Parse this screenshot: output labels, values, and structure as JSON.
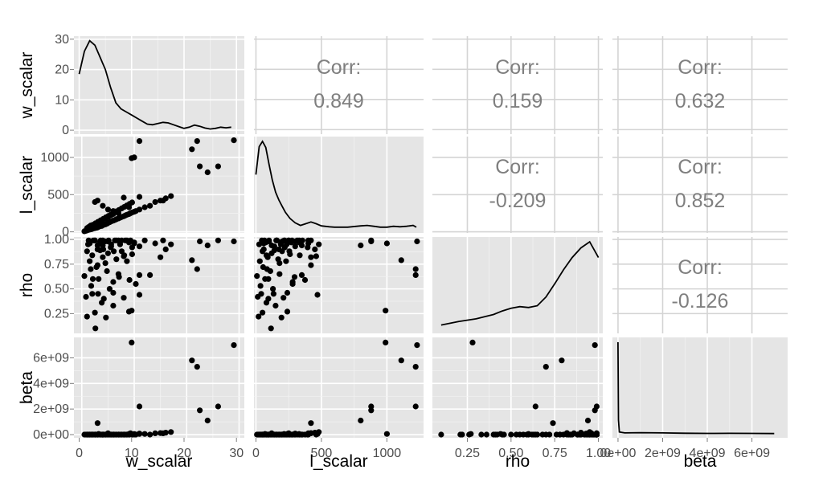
{
  "chart_data": {
    "type": "scatter",
    "title": "",
    "variables": [
      "w_scalar",
      "l_scalar",
      "rho",
      "beta"
    ],
    "panel_background": "#e5e5e5",
    "grid": true,
    "axes": {
      "w_scalar": {
        "range": [
          -1.5,
          31
        ],
        "ticks": [
          0,
          10,
          20,
          30
        ],
        "tick_labels": [
          "0",
          "10",
          "20",
          "30"
        ]
      },
      "l_scalar": {
        "range": [
          -15,
          1280
        ],
        "ticks": [
          0,
          500,
          1000
        ],
        "tick_labels": [
          "0",
          "500",
          "1000"
        ]
      },
      "rho": {
        "range": [
          0.05,
          1.025
        ],
        "ticks": [
          0.25,
          0.5,
          0.75,
          1.0
        ],
        "tick_labels": [
          "0.25",
          "0.50",
          "0.75",
          "1.00"
        ]
      },
      "beta": {
        "range": [
          -250000000.0,
          7600000000.0
        ],
        "ticks": [
          0,
          2000000000.0,
          4000000000.0,
          6000000000.0
        ],
        "tick_labels": [
          "0e+00",
          "2e+09",
          "4e+09",
          "6e+09"
        ]
      }
    },
    "density_axes": {
      "w_scalar": {
        "range": [
          -1,
          31.5
        ],
        "ticks": [
          0,
          10,
          20,
          30
        ],
        "tick_labels": [
          "0",
          "10",
          "20",
          "30"
        ]
      }
    },
    "correlations": [
      {
        "row": "w_scalar",
        "col": "l_scalar",
        "label": "Corr:",
        "value": "0.849"
      },
      {
        "row": "w_scalar",
        "col": "rho",
        "label": "Corr:",
        "value": "0.159"
      },
      {
        "row": "w_scalar",
        "col": "beta",
        "label": "Corr:",
        "value": "0.632"
      },
      {
        "row": "l_scalar",
        "col": "rho",
        "label": "Corr:",
        "value": "-0.209"
      },
      {
        "row": "l_scalar",
        "col": "beta",
        "label": "Corr:",
        "value": "0.852"
      },
      {
        "row": "rho",
        "col": "beta",
        "label": "Corr:",
        "value": "-0.126"
      }
    ],
    "density": {
      "w_scalar": [
        [
          0,
          18.5
        ],
        [
          1,
          26
        ],
        [
          2,
          29.5
        ],
        [
          3,
          28
        ],
        [
          4,
          24
        ],
        [
          5,
          20
        ],
        [
          6,
          14
        ],
        [
          7,
          9
        ],
        [
          8,
          7
        ],
        [
          9,
          6
        ],
        [
          10,
          5
        ],
        [
          11,
          4
        ],
        [
          12,
          3
        ],
        [
          13,
          2
        ],
        [
          14,
          1.8
        ],
        [
          15,
          2.2
        ],
        [
          16,
          2.6
        ],
        [
          17,
          2.4
        ],
        [
          18,
          1.8
        ],
        [
          19,
          1.2
        ],
        [
          20,
          0.6
        ],
        [
          21,
          1
        ],
        [
          22,
          1.7
        ],
        [
          23,
          1.3
        ],
        [
          24,
          0.7
        ],
        [
          25,
          0.4
        ],
        [
          26,
          0.6
        ],
        [
          27,
          1
        ],
        [
          28,
          0.8
        ],
        [
          29,
          1
        ]
      ],
      "l_scalar": [
        [
          0,
          0.62
        ],
        [
          25,
          0.94
        ],
        [
          50,
          1.0
        ],
        [
          75,
          0.93
        ],
        [
          100,
          0.74
        ],
        [
          125,
          0.56
        ],
        [
          150,
          0.42
        ],
        [
          175,
          0.33
        ],
        [
          200,
          0.26
        ],
        [
          225,
          0.19
        ],
        [
          260,
          0.12
        ],
        [
          300,
          0.07
        ],
        [
          340,
          0.04
        ],
        [
          380,
          0.06
        ],
        [
          420,
          0.08
        ],
        [
          460,
          0.06
        ],
        [
          500,
          0.035
        ],
        [
          560,
          0.025
        ],
        [
          600,
          0.02
        ],
        [
          700,
          0.02
        ],
        [
          800,
          0.035
        ],
        [
          850,
          0.04
        ],
        [
          900,
          0.03
        ],
        [
          950,
          0.02
        ],
        [
          1000,
          0.02
        ],
        [
          1050,
          0.03
        ],
        [
          1100,
          0.025
        ],
        [
          1150,
          0.03
        ],
        [
          1200,
          0.04
        ],
        [
          1225,
          0.02
        ]
      ],
      "rho": [
        [
          0.1,
          0.05
        ],
        [
          0.2,
          0.09
        ],
        [
          0.3,
          0.12
        ],
        [
          0.4,
          0.17
        ],
        [
          0.45,
          0.21
        ],
        [
          0.5,
          0.24
        ],
        [
          0.55,
          0.26
        ],
        [
          0.6,
          0.25
        ],
        [
          0.65,
          0.27
        ],
        [
          0.7,
          0.37
        ],
        [
          0.75,
          0.52
        ],
        [
          0.8,
          0.68
        ],
        [
          0.85,
          0.82
        ],
        [
          0.9,
          0.93
        ],
        [
          0.95,
          1.0
        ],
        [
          1.0,
          0.82
        ]
      ],
      "beta": [
        [
          0,
          1.0
        ],
        [
          20000000.0,
          0.15
        ],
        [
          60000000.0,
          0.02
        ],
        [
          300000000.0,
          0.01
        ],
        [
          1000000000.0,
          0.012
        ],
        [
          2000000000.0,
          0.01
        ],
        [
          3000000000.0,
          0.006
        ],
        [
          4000000000.0,
          0.004
        ],
        [
          5000000000.0,
          0.005
        ],
        [
          6000000000.0,
          0.004
        ],
        [
          7000000000.0,
          0.003
        ]
      ]
    },
    "points": [
      [
        0.5,
        8,
        0.63,
        0
      ],
      [
        0.8,
        14,
        0.42,
        0
      ],
      [
        1,
        20,
        0.22,
        0
      ],
      [
        1.2,
        25,
        0.95,
        0
      ],
      [
        1.5,
        30,
        0.78,
        0
      ],
      [
        1.8,
        35,
        0.53,
        0
      ],
      [
        2,
        40,
        0.45,
        0
      ],
      [
        2.2,
        45,
        0.99,
        0
      ],
      [
        2.5,
        50,
        0.26,
        0
      ],
      [
        2.8,
        55,
        0.72,
        0
      ],
      [
        3,
        60,
        0.9,
        0
      ],
      [
        3.2,
        70,
        0.6,
        50000000.0
      ],
      [
        3.5,
        75,
        0.97,
        0
      ],
      [
        3.8,
        80,
        0.36,
        0
      ],
      [
        4,
        90,
        0.82,
        0
      ],
      [
        4.2,
        95,
        0.4,
        0
      ],
      [
        4.5,
        100,
        0.98,
        0
      ],
      [
        4.8,
        110,
        0.68,
        0
      ],
      [
        5,
        120,
        0.86,
        100000000.0
      ],
      [
        5.3,
        130,
        0.5,
        0
      ],
      [
        5.6,
        140,
        0.93,
        0
      ],
      [
        6,
        150,
        0.33,
        0
      ],
      [
        6.3,
        160,
        0.99,
        0
      ],
      [
        6.6,
        170,
        0.8,
        0
      ],
      [
        7,
        180,
        0.65,
        0
      ],
      [
        7.3,
        190,
        0.95,
        0
      ],
      [
        7.6,
        200,
        0.88,
        0
      ],
      [
        8,
        210,
        0.41,
        0
      ],
      [
        8.3,
        220,
        0.99,
        0
      ],
      [
        8.6,
        230,
        0.78,
        0
      ],
      [
        9,
        240,
        0.27,
        50000000.0
      ],
      [
        9.3,
        250,
        0.99,
        100000000.0
      ],
      [
        9.6,
        260,
        0.85,
        0
      ],
      [
        10,
        270,
        0.97,
        0
      ],
      [
        10.3,
        280,
        0.55,
        0
      ],
      [
        11,
        300,
        0.93,
        80000000.0
      ],
      [
        12,
        330,
        0.99,
        50000000.0
      ],
      [
        13,
        350,
        0.64,
        0
      ],
      [
        14,
        400,
        0.96,
        100000000.0
      ],
      [
        15,
        420,
        0.82,
        120000000.0
      ],
      [
        16,
        450,
        0.9,
        150000000.0
      ],
      [
        17,
        480,
        0.95,
        200000000.0
      ],
      [
        1.5,
        60,
        0.96,
        0
      ],
      [
        2,
        80,
        0.84,
        0
      ],
      [
        2.5,
        100,
        0.99,
        0
      ],
      [
        3,
        120,
        0.94,
        0
      ],
      [
        3.5,
        140,
        0.89,
        0
      ],
      [
        4,
        160,
        0.99,
        0
      ],
      [
        4.5,
        180,
        0.76,
        0
      ],
      [
        5,
        200,
        0.98,
        0
      ],
      [
        5.5,
        220,
        0.92,
        0
      ],
      [
        6,
        240,
        0.46,
        0
      ],
      [
        2.5,
        400,
        0.99,
        0
      ],
      [
        3,
        420,
        0.74,
        900000000.0
      ],
      [
        4,
        350,
        0.94,
        0
      ],
      [
        5,
        300,
        0.98,
        0
      ],
      [
        6,
        280,
        0.57,
        0
      ],
      [
        7,
        250,
        0.99,
        0
      ],
      [
        8,
        460,
        0.83,
        0
      ],
      [
        9,
        330,
        0.97,
        0
      ],
      [
        10,
        1000,
        0.96,
        50000000.0
      ],
      [
        11,
        1220,
        0.64,
        2200000000.0
      ],
      [
        9.5,
        990,
        0.28,
        7200000000.0
      ],
      [
        21,
        1110,
        0.79,
        5800000000.0
      ],
      [
        22,
        1220,
        0.7,
        5300000000.0
      ],
      [
        22.5,
        880,
        0.98,
        1900000000.0
      ],
      [
        24,
        800,
        0.94,
        1100000000.0
      ],
      [
        26,
        880,
        0.99,
        2200000000.0
      ],
      [
        29,
        1230,
        0.98,
        7000000000.0
      ],
      [
        1,
        50,
        0.88,
        0
      ],
      [
        1.3,
        65,
        0.99,
        0
      ],
      [
        1.7,
        85,
        0.7,
        0
      ],
      [
        2.1,
        95,
        0.6,
        0
      ],
      [
        2.6,
        115,
        0.1,
        0
      ],
      [
        3.1,
        135,
        0.45,
        0
      ],
      [
        3.6,
        155,
        0.99,
        0
      ],
      [
        4.1,
        175,
        0.9,
        0
      ],
      [
        4.6,
        195,
        0.21,
        0
      ],
      [
        5.1,
        215,
        0.99,
        50000000.0
      ],
      [
        5.6,
        235,
        0.95,
        0
      ],
      [
        6.1,
        255,
        0.88,
        0
      ],
      [
        6.6,
        275,
        0.99,
        0
      ],
      [
        7.1,
        295,
        0.62,
        0
      ],
      [
        7.6,
        315,
        0.99,
        0
      ],
      [
        8.1,
        335,
        0.84,
        0
      ],
      [
        8.6,
        355,
        0.99,
        0
      ],
      [
        9.1,
        375,
        0.59,
        0
      ],
      [
        9.6,
        395,
        0.92,
        0
      ],
      [
        11,
        470,
        0.44,
        50000000.0
      ],
      [
        15.5,
        420,
        0.99,
        100000000.0
      ]
    ]
  }
}
